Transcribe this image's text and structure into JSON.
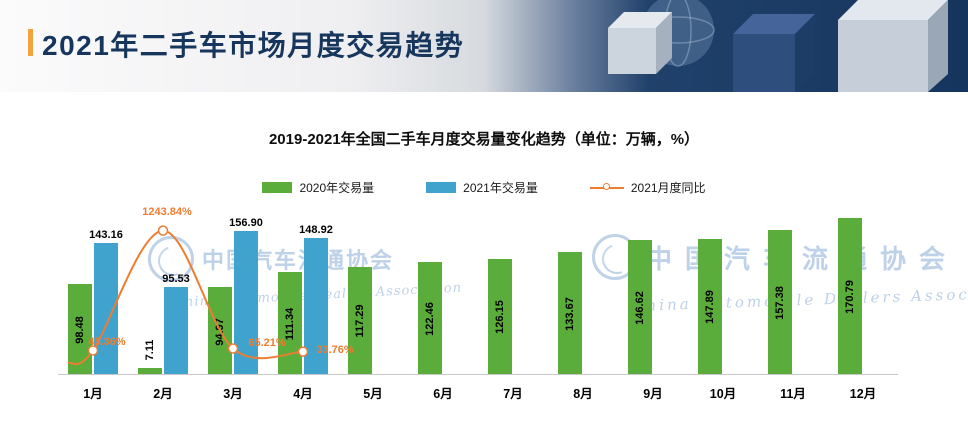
{
  "header": {
    "title": "2021年二手车市场月度交易趋势"
  },
  "chart": {
    "title": "2019-2021年全国二手车月度交易量变化趋势（单位：万辆，%）",
    "legend": [
      {
        "label": "2020年交易量",
        "symbol": "bar",
        "color": "#5BAD3B"
      },
      {
        "label": "2021年交易量",
        "symbol": "bar",
        "color": "#3FA3CE"
      },
      {
        "label": "2021月度同比",
        "symbol": "line-marker",
        "color": "#ED7D31"
      }
    ]
  },
  "chart_data": {
    "type": "bar",
    "title": "2019-2021年全国二手车月度交易量变化趋势（单位：万辆，%）",
    "categories": [
      "1月",
      "2月",
      "3月",
      "4月",
      "5月",
      "6月",
      "7月",
      "8月",
      "9月",
      "10月",
      "11月",
      "12月"
    ],
    "series": [
      {
        "name": "2020年交易量",
        "kind": "bar",
        "color": "#5BAD3B",
        "values": [
          98.48,
          7.11,
          94.97,
          111.34,
          117.29,
          122.46,
          126.15,
          133.67,
          146.62,
          147.89,
          157.38,
          170.79
        ],
        "labels": [
          "98.48",
          "7.11",
          "94.97",
          "111.34",
          "117.29",
          "122.46",
          "126.15",
          "133.67",
          "146.62",
          "147.89",
          "157.38",
          "170.79"
        ]
      },
      {
        "name": "2021年交易量",
        "kind": "bar",
        "color": "#3FA3CE",
        "values": [
          143.16,
          95.53,
          156.9,
          148.92,
          null,
          null,
          null,
          null,
          null,
          null,
          null,
          null
        ],
        "labels": [
          "143.16",
          "95.53",
          "156.90",
          "148.92"
        ]
      },
      {
        "name": "2021月度同比",
        "kind": "line",
        "unit": "%",
        "color": "#ED7D31",
        "values": [
          45.36,
          1243.84,
          65.21,
          33.76,
          null,
          null,
          null,
          null,
          null,
          null,
          null,
          null
        ],
        "labels": [
          "45.36%",
          "1243.84%",
          "65.21%",
          "33.76%"
        ]
      }
    ],
    "y_axis": {
      "primary_unit": "万辆",
      "primary_max": 175,
      "secondary_unit": "%",
      "secondary_min": -200,
      "secondary_max": 1400,
      "grid": false,
      "axis_value_labels_visible": false
    },
    "legend_position": "top",
    "xlabel": "",
    "ylabel": ""
  },
  "watermark": {
    "text": "中国汽车流通协会",
    "subtext": "China Automobile Dealers Association"
  }
}
